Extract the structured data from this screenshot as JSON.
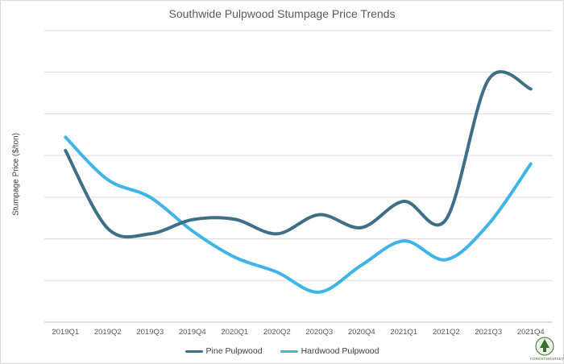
{
  "chart_data": {
    "type": "line",
    "title": "Southwide Pulpwood Stumpage Price Trends",
    "xlabel": "",
    "ylabel": "Stumpage Price ($/ton)",
    "categories": [
      "2019Q1",
      "2019Q2",
      "2019Q3",
      "2019Q4",
      "2020Q1",
      "2020Q2",
      "2020Q3",
      "2020Q4",
      "2021Q1",
      "2021Q2",
      "2021Q3",
      "2021Q4"
    ],
    "ylim": [
      0,
      7
    ],
    "grid": "horizontal",
    "legend_position": "bottom",
    "series": [
      {
        "name": "Pine Pulpwood",
        "color": "#3f6f88",
        "values": [
          4.12,
          2.25,
          2.12,
          2.46,
          2.47,
          2.12,
          2.58,
          2.27,
          2.9,
          2.47,
          5.82,
          5.6
        ]
      },
      {
        "name": "Hardwood Pulpwood",
        "color": "#3fb4e8",
        "values": [
          4.44,
          3.42,
          3.0,
          2.19,
          1.56,
          1.2,
          0.72,
          1.37,
          1.95,
          1.5,
          2.35,
          3.8
        ]
      }
    ]
  },
  "logo": {
    "text": "FOREST2MARKET"
  }
}
